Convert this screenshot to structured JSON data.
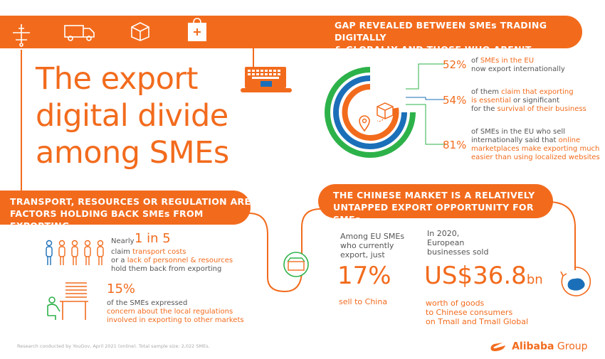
{
  "colors": {
    "accent": "#f26b1d",
    "green": "#2db24a",
    "blue": "#1b6fb8"
  },
  "top_banner": {
    "line1": "GAP REVEALED BETWEEN SMEs TRADING DIGITALLY",
    "line2": "& GLOBALLY AND THOSE WHO AREN’T"
  },
  "title": {
    "line1": "The export",
    "line2": "digital divide",
    "line3": "among SMEs"
  },
  "stats_top": [
    {
      "pct": "52%",
      "pre": "of ",
      "hl": "SMEs in the EU",
      "rest": "now export internationally"
    },
    {
      "pct": "54%",
      "pre": "of them ",
      "hl": "claim that exporting",
      "hl2": "is essential",
      "mid": " or significant",
      "rest": "for the ",
      "hl3": "survival of their business"
    },
    {
      "pct": "81%",
      "l1": "of SMEs in the EU who sell",
      "l2a": "internationally said that ",
      "l2b": "online",
      "l3": "marketplaces make exporting much",
      "l4": "easier than using localized websites"
    }
  ],
  "left_banner": {
    "line1": "TRANSPORT, RESOURCES OR REGULATION ARE",
    "line2": "FACTORS HOLDING BACK SMEs FROM EXPORTING"
  },
  "transport": {
    "nearly": "Nearly",
    "stat": "1 in 5",
    "l1a": "claim ",
    "l1b": "transport costs",
    "l2a": "or a ",
    "l2b": "lack of personnel & resources",
    "l3": "hold them back from exporting"
  },
  "regulation": {
    "stat": "15%",
    "l1": "of the SMEs expressed",
    "l2": "concern about the local regulations",
    "l3": "involved in exporting to other markets"
  },
  "right_banner": {
    "line1": "THE CHINESE MARKET IS A RELATIVELY",
    "line2": "UNTAPPED EXPORT OPPORTUNITY FOR SMEs"
  },
  "china_left": {
    "l1": "Among EU SMEs",
    "l2": "who currently",
    "l3": "export, just",
    "stat": "17%",
    "foot": "sell to China"
  },
  "china_right": {
    "l1": "In 2020,",
    "l2": "European",
    "l3": "businesses sold",
    "stat": "US$36.8",
    "unit": "bn",
    "f1": "worth of goods",
    "f2": "to Chinese consumers",
    "f3": "on Tmall and Tmall Global"
  },
  "footer": {
    "note": "Research conducted by YouGov, April 2021 (online). Total sample size: 2,022 SMEs.",
    "brand": "Alibaba",
    "brand2": " Group"
  },
  "icons": [
    "airplane-icon",
    "truck-icon",
    "box-icon",
    "shopping-bag-icon",
    "laptop-icon",
    "location-pin-icon",
    "package-icon",
    "people-icon",
    "worker-desk-icon",
    "shop-icon",
    "china-map-icon",
    "alibaba-logo-icon"
  ]
}
